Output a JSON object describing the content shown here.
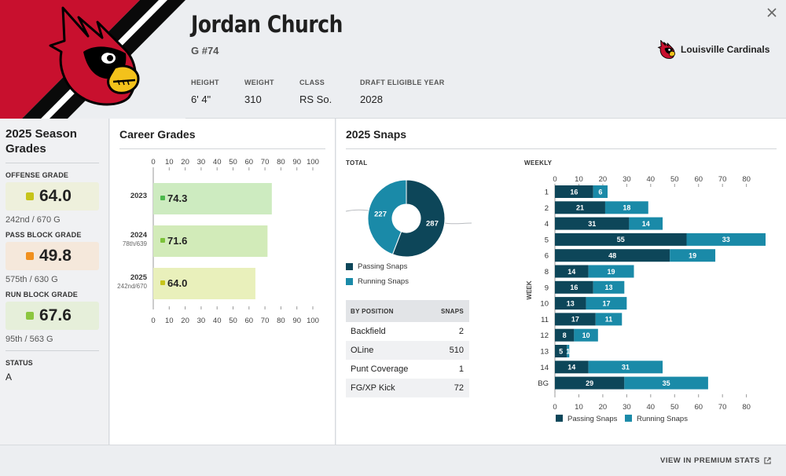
{
  "player": {
    "name": "Jordan Church",
    "position": "G #74",
    "height_label": "HEIGHT",
    "height": "6' 4\"",
    "weight_label": "WEIGHT",
    "weight": "310",
    "class_label": "CLASS",
    "class": "RS So.",
    "draft_label": "DRAFT ELIGIBLE YEAR",
    "draft_year": "2028"
  },
  "team": {
    "name": "Louisville Cardinals",
    "logo_icon": "cardinal-logo-icon",
    "primary_color": "#c8102e",
    "secondary_color": "#000000"
  },
  "close_icon": "close-icon",
  "season": {
    "title": "2025 Season Grades",
    "grades": [
      {
        "label": "OFFENSE GRADE",
        "value": "64.0",
        "rank": "242nd / 670 G",
        "indicator_color": "#c6c41a",
        "bg_color": "#eef0dc"
      },
      {
        "label": "PASS BLOCK GRADE",
        "value": "49.8",
        "rank": "575th / 630 G",
        "indicator_color": "#f0901e",
        "bg_color": "#f5e8db"
      },
      {
        "label": "RUN BLOCK GRADE",
        "value": "67.6",
        "rank": "95th / 563 G",
        "indicator_color": "#8cc63f",
        "bg_color": "#e6efda"
      }
    ],
    "status_label": "STATUS",
    "status_value": "A"
  },
  "career": {
    "title": "Career Grades"
  },
  "snaps": {
    "title": "2025 Snaps",
    "total_label": "TOTAL",
    "weekly_label": "WEEKLY",
    "passing_color": "#0d4659",
    "running_color": "#1a8aa8",
    "table": {
      "col_position": "BY POSITION",
      "col_snaps": "SNAPS",
      "rows": [
        {
          "position": "Backfield",
          "snaps": "2"
        },
        {
          "position": "OLine",
          "snaps": "510"
        },
        {
          "position": "Punt Coverage",
          "snaps": "1"
        },
        {
          "position": "FG/XP Kick",
          "snaps": "72"
        }
      ]
    }
  },
  "footer": {
    "premium_label": "VIEW IN PREMIUM STATS",
    "external_icon": "external-link-icon"
  },
  "chart_data": [
    {
      "type": "bar",
      "orientation": "horizontal",
      "categories": [
        "2023",
        "2024",
        "2025"
      ],
      "sub_labels": [
        "",
        "78th/639",
        "242nd/670"
      ],
      "values": [
        74.3,
        71.6,
        64.0
      ],
      "value_labels": [
        "74.3",
        "71.6",
        "64.0"
      ],
      "bar_colors": [
        "#cdebc0",
        "#d2ebb9",
        "#e9f0bb"
      ],
      "indicator_colors": [
        "#4cb84c",
        "#7cc23a",
        "#c6c41a"
      ],
      "xlim": [
        0,
        100
      ],
      "xticks": [
        0,
        10,
        20,
        30,
        40,
        50,
        60,
        70,
        80,
        90,
        100
      ]
    },
    {
      "type": "pie",
      "donut": true,
      "series": [
        {
          "name": "Passing Snaps",
          "value": 287,
          "color": "#0d4659"
        },
        {
          "name": "Running Snaps",
          "value": 227,
          "color": "#1a8aa8"
        }
      ]
    },
    {
      "type": "bar",
      "orientation": "horizontal",
      "stacked": true,
      "ylabel": "WEEK",
      "categories": [
        "1",
        "2",
        "4",
        "5",
        "6",
        "8",
        "9",
        "10",
        "11",
        "12",
        "13",
        "14",
        "BG"
      ],
      "series": [
        {
          "name": "Passing Snaps",
          "values": [
            16,
            21,
            31,
            55,
            48,
            14,
            16,
            13,
            17,
            8,
            5,
            14,
            29
          ],
          "color": "#0d4659"
        },
        {
          "name": "Running Snaps",
          "values": [
            6,
            18,
            14,
            33,
            19,
            19,
            13,
            17,
            11,
            10,
            1,
            31,
            35
          ],
          "color": "#1a8aa8"
        }
      ],
      "xlim": [
        0,
        88
      ],
      "xticks": [
        0,
        10,
        20,
        30,
        40,
        50,
        60,
        70,
        80
      ],
      "legend": "bottom"
    }
  ]
}
